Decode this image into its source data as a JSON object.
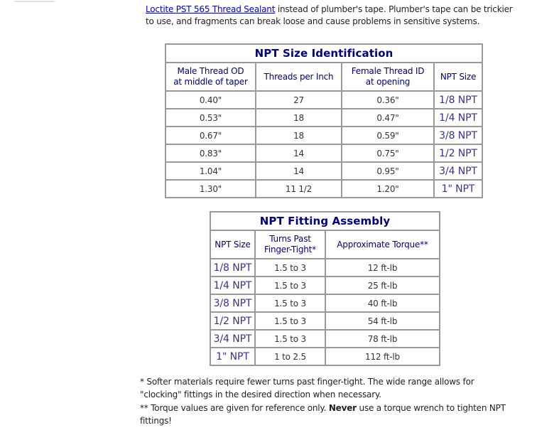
{
  "colors": {
    "navy": "#000080",
    "npt_value": "#333399",
    "link": "#0000cc",
    "border": "#999999",
    "data_text": "#333333",
    "body_text": "#222222"
  },
  "intro": {
    "link_text": "Loctite PST 565 Thread Sealant",
    "line1_rest": " instead of plumber's tape. Plumber's tape can be trickier",
    "line2": "to use, and fragments can break loose and cause problems in sensitive systems."
  },
  "table1": {
    "title": "NPT Size Identification",
    "headers": [
      "Male Thread OD\nat middle of taper",
      "Threads per Inch",
      "Female Thread ID\nat opening",
      "NPT Size"
    ],
    "npt_col": 3,
    "rows": [
      [
        "0.40\"",
        "27",
        "0.36\"",
        "1/8 NPT"
      ],
      [
        "0.53\"",
        "18",
        "0.47\"",
        "1/4 NPT"
      ],
      [
        "0.67\"",
        "18",
        "0.59\"",
        "3/8 NPT"
      ],
      [
        "0.83\"",
        "14",
        "0.75\"",
        "1/2 NPT"
      ],
      [
        "1.04\"",
        "14",
        "0.95\"",
        "3/4 NPT"
      ],
      [
        "1.30\"",
        "11 1/2",
        "1.20\"",
        "1\" NPT"
      ]
    ]
  },
  "table2": {
    "title": "NPT Fitting Assembly",
    "headers": [
      "NPT Size",
      "Turns Past\nFinger-Tight*",
      "Approximate Torque**"
    ],
    "npt_col": 0,
    "rows": [
      [
        "1/8 NPT",
        "1.5 to 3",
        "12 ft-lb"
      ],
      [
        "1/4 NPT",
        "1.5 to 3",
        "25 ft-lb"
      ],
      [
        "3/8 NPT",
        "1.5 to 3",
        "40 ft-lb"
      ],
      [
        "1/2 NPT",
        "1.5 to 3",
        "54 ft-lb"
      ],
      [
        "3/4 NPT",
        "1.5 to 3",
        "78 ft-lb"
      ],
      [
        "1\" NPT",
        "1 to 2.5",
        "112 ft-lb"
      ]
    ]
  },
  "footnotes": {
    "note1_line1": "* Softer materials require fewer turns past finger-tight. The wide range allows for",
    "note1_line2": "\"clocking\" fittings in the desired direction when necessary.",
    "note2_before_bold": "** Torque values are given for reference only. ",
    "note2_bold": "Never",
    "note2_after_bold": " use a torque wrench to tighten NPT",
    "note2_line2": "fittings!"
  }
}
